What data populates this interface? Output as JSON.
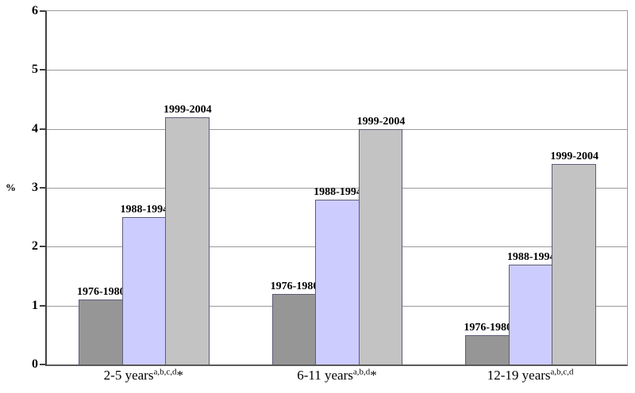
{
  "chart_data": {
    "type": "bar",
    "title": "",
    "ylabel": "%",
    "ylim": [
      0,
      6
    ],
    "yticks": [
      0,
      1,
      2,
      3,
      4,
      5,
      6
    ],
    "grid": true,
    "legend_position": "none",
    "categories": [
      {
        "base": "2-5 years",
        "superscript": "a,b,c,d",
        "suffix": "*"
      },
      {
        "base": "6-11 years",
        "superscript": "a,b,d",
        "suffix": "*"
      },
      {
        "base": "12-19 years",
        "superscript": "a,b,c,d",
        "suffix": ""
      }
    ],
    "series": [
      {
        "name": "1976-1980",
        "color": "#969696",
        "values": [
          1.1,
          1.2,
          0.5
        ]
      },
      {
        "name": "1988-1994",
        "color": "#ccccff",
        "values": [
          2.5,
          2.8,
          1.7
        ]
      },
      {
        "name": "1999-2004",
        "color": "#c3c3c3",
        "values": [
          4.2,
          4.0,
          3.4
        ]
      }
    ],
    "colors": {
      "background": "#ffffff",
      "gridline": "#9a9a9a",
      "axis": "#404040",
      "bar_border": "#5c5c7a",
      "text": "#000000"
    }
  }
}
